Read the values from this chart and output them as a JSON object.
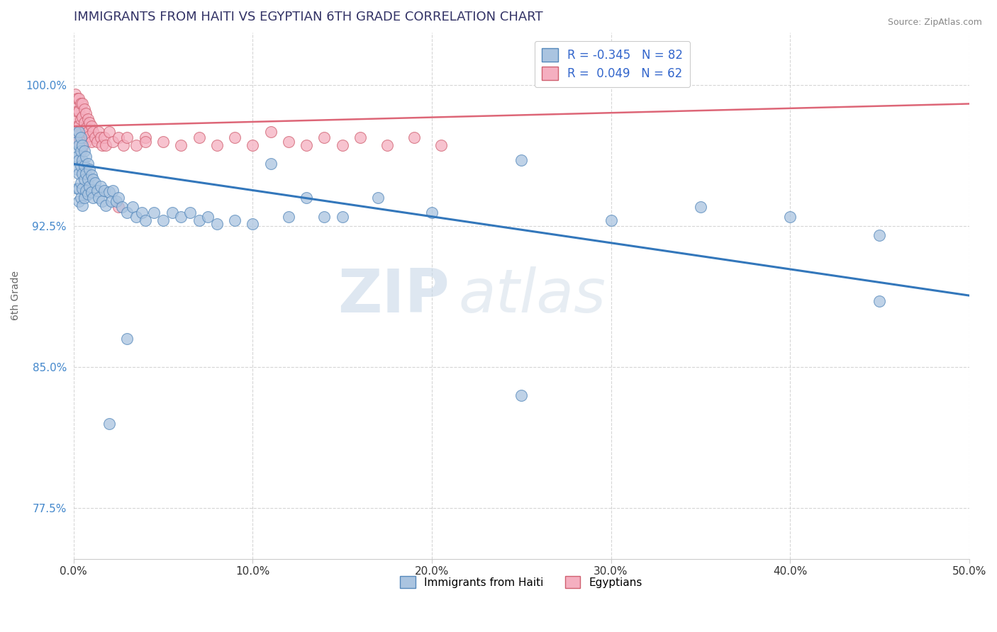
{
  "title": "IMMIGRANTS FROM HAITI VS EGYPTIAN 6TH GRADE CORRELATION CHART",
  "source_text": "Source: ZipAtlas.com",
  "ylabel": "6th Grade",
  "xmin": 0.0,
  "xmax": 0.5,
  "ymin": 0.748,
  "ymax": 1.028,
  "yticks": [
    0.775,
    0.85,
    0.925,
    1.0
  ],
  "ytick_labels": [
    "77.5%",
    "85.0%",
    "92.5%",
    "100.0%"
  ],
  "xticks": [
    0.0,
    0.1,
    0.2,
    0.3,
    0.4,
    0.5
  ],
  "xtick_labels": [
    "0.0%",
    "10.0%",
    "20.0%",
    "30.0%",
    "40.0%",
    "50.0%"
  ],
  "haiti_color": "#aac4e0",
  "egypt_color": "#f5afc0",
  "haiti_edge": "#5588bb",
  "egypt_edge": "#d06070",
  "trendline_haiti_color": "#3377bb",
  "trendline_egypt_color": "#dd6677",
  "legend_haiti_label": "R = -0.345   N = 82",
  "legend_egypt_label": "R =  0.049   N = 62",
  "bottom_legend_haiti": "Immigrants from Haiti",
  "bottom_legend_egypt": "Egyptians",
  "watermark_zip": "ZIP",
  "watermark_atlas": "atlas",
  "haiti_x": [
    0.001,
    0.001,
    0.002,
    0.002,
    0.002,
    0.002,
    0.003,
    0.003,
    0.003,
    0.003,
    0.003,
    0.003,
    0.004,
    0.004,
    0.004,
    0.004,
    0.004,
    0.005,
    0.005,
    0.005,
    0.005,
    0.005,
    0.006,
    0.006,
    0.006,
    0.006,
    0.007,
    0.007,
    0.007,
    0.008,
    0.008,
    0.008,
    0.009,
    0.009,
    0.01,
    0.01,
    0.011,
    0.011,
    0.012,
    0.013,
    0.014,
    0.015,
    0.016,
    0.017,
    0.018,
    0.02,
    0.021,
    0.022,
    0.024,
    0.025,
    0.027,
    0.03,
    0.033,
    0.035,
    0.038,
    0.04,
    0.045,
    0.05,
    0.055,
    0.06,
    0.065,
    0.07,
    0.075,
    0.08,
    0.09,
    0.1,
    0.11,
    0.12,
    0.13,
    0.14,
    0.15,
    0.17,
    0.2,
    0.25,
    0.3,
    0.35,
    0.4,
    0.45,
    0.02,
    0.03,
    0.25,
    0.45
  ],
  "haiti_y": [
    0.975,
    0.965,
    0.97,
    0.962,
    0.955,
    0.945,
    0.975,
    0.968,
    0.96,
    0.953,
    0.945,
    0.938,
    0.972,
    0.965,
    0.957,
    0.948,
    0.94,
    0.968,
    0.96,
    0.953,
    0.945,
    0.936,
    0.965,
    0.957,
    0.95,
    0.94,
    0.962,
    0.953,
    0.944,
    0.958,
    0.95,
    0.942,
    0.955,
    0.946,
    0.952,
    0.943,
    0.95,
    0.94,
    0.948,
    0.944,
    0.94,
    0.946,
    0.938,
    0.944,
    0.936,
    0.943,
    0.938,
    0.944,
    0.938,
    0.94,
    0.935,
    0.932,
    0.935,
    0.93,
    0.932,
    0.928,
    0.932,
    0.928,
    0.932,
    0.93,
    0.932,
    0.928,
    0.93,
    0.926,
    0.928,
    0.926,
    0.958,
    0.93,
    0.94,
    0.93,
    0.93,
    0.94,
    0.932,
    0.96,
    0.928,
    0.935,
    0.93,
    0.92,
    0.82,
    0.865,
    0.835,
    0.885
  ],
  "egypt_x": [
    0.001,
    0.001,
    0.001,
    0.002,
    0.002,
    0.002,
    0.002,
    0.003,
    0.003,
    0.003,
    0.003,
    0.004,
    0.004,
    0.004,
    0.005,
    0.005,
    0.005,
    0.005,
    0.006,
    0.006,
    0.006,
    0.007,
    0.007,
    0.007,
    0.008,
    0.008,
    0.009,
    0.009,
    0.01,
    0.01,
    0.011,
    0.012,
    0.013,
    0.014,
    0.015,
    0.016,
    0.017,
    0.018,
    0.02,
    0.022,
    0.025,
    0.028,
    0.03,
    0.035,
    0.04,
    0.05,
    0.06,
    0.07,
    0.08,
    0.09,
    0.1,
    0.11,
    0.12,
    0.13,
    0.14,
    0.15,
    0.16,
    0.175,
    0.19,
    0.205,
    0.025,
    0.04
  ],
  "egypt_y": [
    0.995,
    0.988,
    0.982,
    0.993,
    0.986,
    0.978,
    0.971,
    0.993,
    0.986,
    0.978,
    0.97,
    0.99,
    0.982,
    0.975,
    0.99,
    0.983,
    0.975,
    0.967,
    0.987,
    0.98,
    0.972,
    0.985,
    0.977,
    0.97,
    0.982,
    0.975,
    0.98,
    0.973,
    0.978,
    0.97,
    0.975,
    0.972,
    0.97,
    0.975,
    0.972,
    0.968,
    0.972,
    0.968,
    0.975,
    0.97,
    0.972,
    0.968,
    0.972,
    0.968,
    0.972,
    0.97,
    0.968,
    0.972,
    0.968,
    0.972,
    0.968,
    0.975,
    0.97,
    0.968,
    0.972,
    0.968,
    0.972,
    0.968,
    0.972,
    0.968,
    0.935,
    0.97
  ]
}
